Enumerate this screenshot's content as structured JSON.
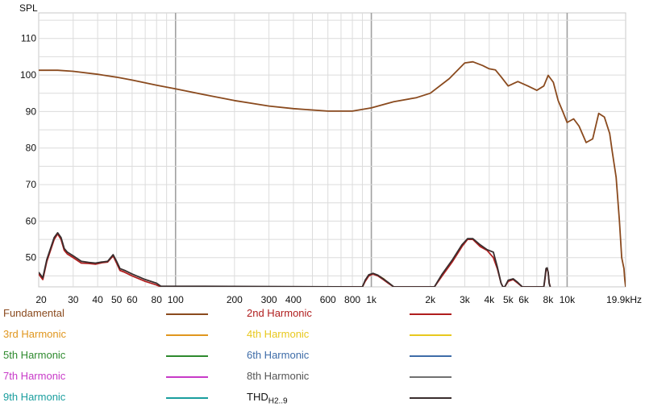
{
  "chart_data": {
    "type": "line",
    "ylabel": "SPL",
    "xunit": "kHz",
    "ylim": [
      42,
      117
    ],
    "xlim": [
      20,
      19900
    ],
    "x_scale": "log",
    "grid": true,
    "legend_placement": "bottom",
    "yticks": [
      {
        "value": 110,
        "label": "110"
      },
      {
        "value": 100,
        "label": "100"
      },
      {
        "value": 90,
        "label": "90"
      },
      {
        "value": 80,
        "label": "80"
      },
      {
        "value": 70,
        "label": "70"
      },
      {
        "value": 60,
        "label": "60"
      },
      {
        "value": 50,
        "label": "50"
      }
    ],
    "xticks": [
      {
        "value": 20,
        "label": "20"
      },
      {
        "value": 30,
        "label": "30"
      },
      {
        "value": 40,
        "label": "40"
      },
      {
        "value": 50,
        "label": "50"
      },
      {
        "value": 60,
        "label": "60"
      },
      {
        "value": 80,
        "label": "80"
      },
      {
        "value": 100,
        "label": "100"
      },
      {
        "value": 200,
        "label": "200"
      },
      {
        "value": 300,
        "label": "300"
      },
      {
        "value": 400,
        "label": "400"
      },
      {
        "value": 600,
        "label": "600"
      },
      {
        "value": 800,
        "label": "800"
      },
      {
        "value": 1000,
        "label": "1k"
      },
      {
        "value": 2000,
        "label": "2k"
      },
      {
        "value": 3000,
        "label": "3k"
      },
      {
        "value": 4000,
        "label": "4k"
      },
      {
        "value": 5000,
        "label": "5k"
      },
      {
        "value": 6000,
        "label": "6k"
      },
      {
        "value": 8000,
        "label": "8k"
      },
      {
        "value": 10000,
        "label": "10k"
      },
      {
        "value": 19900,
        "label": "19.9kHz"
      }
    ],
    "series": [
      {
        "name": "Fundamental",
        "color": "#8a4a1e",
        "x": [
          20,
          25,
          30,
          40,
          50,
          60,
          80,
          100,
          150,
          200,
          300,
          400,
          600,
          800,
          1000,
          1300,
          1700,
          2000,
          2500,
          3000,
          3300,
          3700,
          4000,
          4300,
          4600,
          5000,
          5600,
          6300,
          7000,
          7600,
          8000,
          8500,
          9000,
          9500,
          10000,
          10800,
          11500,
          12500,
          13500,
          14500,
          15500,
          16500,
          17000,
          17800,
          18500,
          19000,
          19500,
          19700,
          19900
        ],
        "y": [
          101.3,
          101.3,
          101,
          100.2,
          99.4,
          98.6,
          97.2,
          96.2,
          94.3,
          93,
          91.5,
          90.8,
          90.1,
          90.1,
          91,
          92.7,
          93.8,
          95,
          99,
          103.3,
          103.6,
          102.6,
          101.7,
          101.4,
          99.5,
          97,
          98.2,
          97,
          95.8,
          97,
          99.9,
          98,
          93,
          90,
          87,
          88,
          86,
          81.5,
          82.5,
          89.5,
          88.5,
          84,
          79,
          72,
          60,
          50,
          47,
          44,
          42
        ]
      },
      {
        "name": "2nd Harmonic",
        "color": "#b01e1e",
        "x": [
          20,
          21,
          22,
          24,
          25,
          26,
          27,
          28,
          30,
          33,
          36,
          39,
          42,
          45,
          48,
          50,
          52,
          55,
          60,
          70,
          80,
          84,
          900,
          930,
          970,
          1020,
          1080,
          1150,
          1220,
          1300,
          2100,
          2300,
          2600,
          2900,
          3100,
          3300,
          3600,
          3900,
          4200,
          4400,
          4600,
          4700,
          4800,
          5000,
          5300,
          5600,
          5900,
          6100,
          6300,
          7600,
          7700,
          7800,
          7900,
          8000,
          8100,
          8200
        ],
        "y": [
          45.5,
          44,
          49,
          55,
          56.5,
          55,
          52,
          51,
          50,
          48.5,
          48.4,
          48.2,
          48.6,
          48.8,
          50.5,
          48.5,
          46.5,
          46,
          45,
          43.5,
          42.5,
          42,
          42,
          43.5,
          45,
          45.5,
          45,
          44,
          43,
          42,
          42,
          45,
          49,
          53,
          55,
          55,
          53,
          52,
          50,
          47,
          43,
          42,
          42,
          43.5,
          44,
          43,
          42,
          42,
          42,
          42,
          44,
          46.5,
          47,
          46,
          43,
          42
        ]
      },
      {
        "name": "3rd Harmonic",
        "color": "#e0961e",
        "x": [
          900,
          930,
          970,
          1020,
          1080,
          1150,
          1220,
          1300
        ],
        "y": [
          42,
          43.6,
          45.2,
          45.6,
          45.1,
          44.3,
          43.1,
          42
        ]
      },
      {
        "name": "4th Harmonic",
        "color": "#e8c81e",
        "x": [],
        "y": []
      },
      {
        "name": "5th Harmonic",
        "color": "#2e8a2e",
        "x": [],
        "y": []
      },
      {
        "name": "6th Harmonic",
        "color": "#3e6ca8",
        "x": [],
        "y": []
      },
      {
        "name": "7th Harmonic",
        "color": "#c83ac8",
        "x": [],
        "y": []
      },
      {
        "name": "8th Harmonic",
        "color": "#707070",
        "x": [],
        "y": []
      },
      {
        "name": "9th Harmonic",
        "color": "#1a9e9e",
        "x": [],
        "y": []
      },
      {
        "name": "THD",
        "name_sub": "H2..9",
        "color": "#3a2e2e",
        "x": [
          20,
          21,
          22,
          24,
          25,
          26,
          27,
          28,
          30,
          33,
          36,
          39,
          42,
          45,
          48,
          50,
          52,
          55,
          60,
          70,
          80,
          84,
          900,
          930,
          970,
          1020,
          1080,
          1150,
          1220,
          1300,
          2100,
          2300,
          2600,
          2900,
          3100,
          3300,
          3600,
          3900,
          4200,
          4400,
          4600,
          4700,
          4800,
          5000,
          5300,
          5600,
          5900,
          6100,
          6300,
          7600,
          7700,
          7800,
          7900,
          8000,
          8100,
          8200
        ],
        "y": [
          46,
          44.5,
          49.5,
          55.5,
          56.8,
          55.5,
          52.5,
          51.5,
          50.5,
          49,
          48.7,
          48.5,
          48.8,
          49,
          50.8,
          49,
          47,
          46.5,
          45.5,
          44,
          43,
          42.2,
          42,
          43.8,
          45.3,
          45.7,
          45.2,
          44.2,
          43.2,
          42,
          42,
          45.5,
          49.5,
          53.5,
          55.2,
          55.2,
          53.5,
          52.2,
          51.5,
          47.5,
          43,
          42,
          42,
          43.8,
          44.2,
          43.2,
          42,
          42,
          42,
          42,
          44.5,
          47,
          47.2,
          46,
          43,
          42
        ]
      }
    ]
  }
}
